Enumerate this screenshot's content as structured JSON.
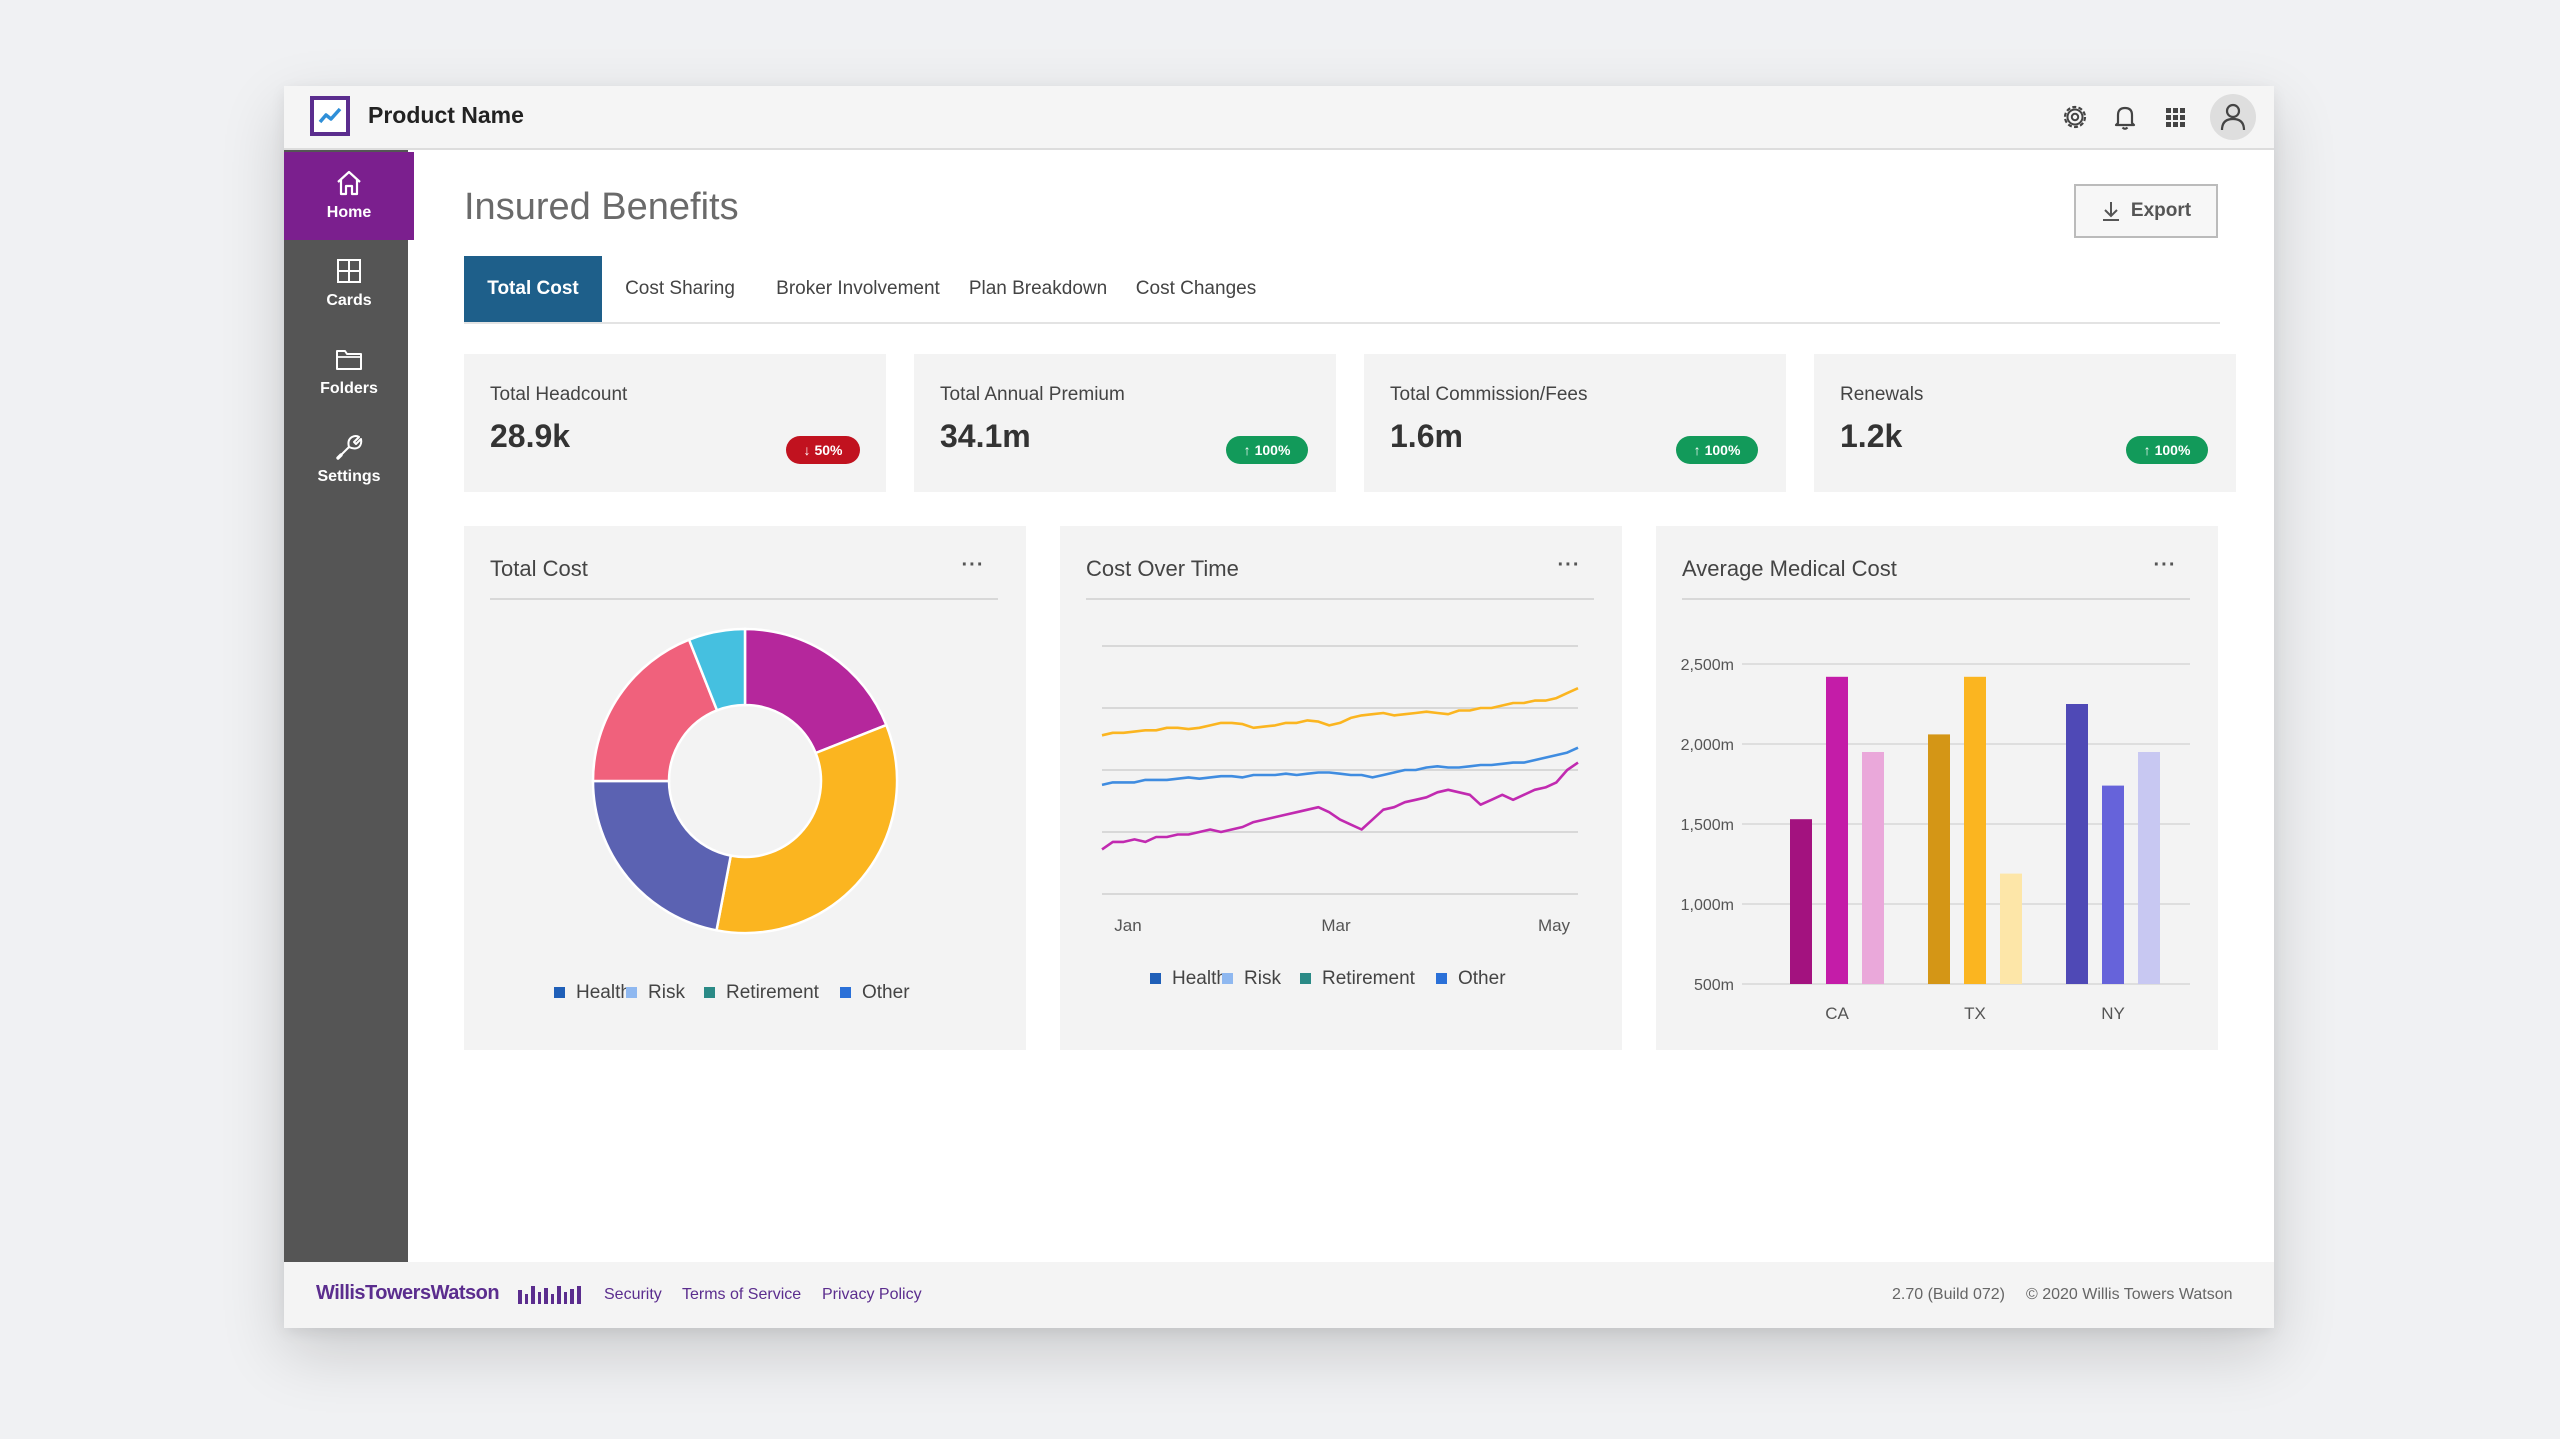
{
  "app": {
    "product_name": "Product Name"
  },
  "topbar": {
    "icons": [
      "gear-icon",
      "bell-icon",
      "grid-icon",
      "user-icon"
    ]
  },
  "sidebar": {
    "items": [
      {
        "label": "Home",
        "icon": "home-icon",
        "active": true
      },
      {
        "label": "Cards",
        "icon": "cards-icon",
        "active": false
      },
      {
        "label": "Folders",
        "icon": "folder-icon",
        "active": false
      },
      {
        "label": "Settings",
        "icon": "wrench-icon",
        "active": false
      }
    ]
  },
  "page": {
    "title": "Insured Benefits",
    "export_label": "Export"
  },
  "tabs": [
    {
      "label": "Total Cost",
      "active": true
    },
    {
      "label": "Cost Sharing",
      "active": false
    },
    {
      "label": "Broker Involvement",
      "active": false
    },
    {
      "label": "Plan Breakdown",
      "active": false
    },
    {
      "label": "Cost Changes",
      "active": false
    }
  ],
  "kpis": [
    {
      "label": "Total Headcount",
      "value": "28.9k",
      "change": "50%",
      "direction": "down"
    },
    {
      "label": "Total Annual Premium",
      "value": "34.1m",
      "change": "100%",
      "direction": "up"
    },
    {
      "label": "Total Commission/Fees",
      "value": "1.6m",
      "change": "100%",
      "direction": "up"
    },
    {
      "label": "Renewals",
      "value": "1.2k",
      "change": "100%",
      "direction": "up"
    }
  ],
  "colors": {
    "accent_purple": "#7b1f8e",
    "tab_active": "#1e5f8a",
    "badge_down": "#c1121f",
    "badge_up": "#129a5a"
  },
  "chart_data": [
    {
      "type": "pie",
      "title": "Total Cost",
      "more_label": "···",
      "donut": true,
      "slices": [
        {
          "value": 19,
          "color": "#b5279c"
        },
        {
          "value": 34,
          "color": "#fbb520"
        },
        {
          "value": 22,
          "color": "#5b62b2"
        },
        {
          "value": 19,
          "color": "#f0617c"
        },
        {
          "value": 6,
          "color": "#45c0e0"
        }
      ],
      "legend": [
        {
          "name": "Health",
          "color": "#1f5fb8"
        },
        {
          "name": "Risk",
          "color": "#8fb8f0"
        },
        {
          "name": "Retirement",
          "color": "#2a8a86"
        },
        {
          "name": "Other",
          "color": "#2a70d8"
        }
      ],
      "legend_position": "bottom"
    },
    {
      "type": "line",
      "title": "Cost Over Time",
      "more_label": "···",
      "x_tick_labels": [
        "Jan",
        "Mar",
        "May"
      ],
      "ylim": [
        0,
        100
      ],
      "grid": true,
      "series": [
        {
          "color": "#fbb520",
          "values": [
            64,
            65,
            65,
            65.5,
            66,
            66,
            67,
            67,
            66.5,
            67,
            68,
            69,
            69,
            68.5,
            67,
            67.5,
            68,
            69,
            69,
            70,
            69.5,
            68,
            69,
            71,
            72,
            72.5,
            73,
            72,
            72.5,
            73,
            73.5,
            73,
            72.5,
            74,
            74,
            75,
            75,
            76,
            77,
            77,
            78,
            78,
            79,
            81,
            83
          ]
        },
        {
          "color": "#3f8ce0",
          "values": [
            44,
            45,
            45,
            45,
            46,
            46,
            46,
            46.5,
            47,
            46.5,
            47,
            47.5,
            47.5,
            47,
            48,
            48,
            48,
            48.5,
            48,
            48.5,
            49,
            49,
            48.5,
            48,
            48,
            47,
            48,
            49,
            50,
            50,
            51,
            51.5,
            51,
            51,
            51.5,
            52,
            52,
            52.5,
            53,
            53,
            54,
            55,
            56,
            57,
            59
          ]
        },
        {
          "color": "#c12ab0",
          "values": [
            18,
            21,
            21,
            22,
            21,
            23,
            23,
            24,
            24,
            25,
            26,
            25,
            26,
            27,
            29,
            30,
            31,
            32,
            33,
            34,
            35,
            33,
            30,
            28,
            26,
            30,
            34,
            35,
            37,
            38,
            39,
            41,
            42,
            41,
            40,
            36,
            38,
            40,
            38,
            40,
            42,
            43,
            45,
            50,
            53
          ]
        }
      ],
      "legend": [
        {
          "name": "Health",
          "color": "#1f5fb8"
        },
        {
          "name": "Risk",
          "color": "#8fb8f0"
        },
        {
          "name": "Retirement",
          "color": "#2a8a86"
        },
        {
          "name": "Other",
          "color": "#2a70d8"
        }
      ],
      "legend_position": "bottom"
    },
    {
      "type": "bar",
      "title": "Average Medical Cost",
      "more_label": "···",
      "categories": [
        "CA",
        "TX",
        "NY"
      ],
      "ylim": [
        500,
        2500
      ],
      "y_ticks": [
        500,
        1000,
        1500,
        2000,
        2500
      ],
      "y_tick_labels": [
        "500m",
        "1,000m",
        "1,500m",
        "2,000m",
        "2,500m"
      ],
      "grid": true,
      "groups": [
        {
          "category": "CA",
          "bars": [
            {
              "value": 1530,
              "color": "#a3127f"
            },
            {
              "value": 2420,
              "color": "#c41ca8"
            },
            {
              "value": 1950,
              "color": "#eaa8da"
            }
          ]
        },
        {
          "category": "TX",
          "bars": [
            {
              "value": 2060,
              "color": "#d49616"
            },
            {
              "value": 2420,
              "color": "#fbb520"
            },
            {
              "value": 1190,
              "color": "#fde6a8"
            }
          ]
        },
        {
          "category": "NY",
          "bars": [
            {
              "value": 2250,
              "color": "#4f49b6"
            },
            {
              "value": 1740,
              "color": "#6663da"
            },
            {
              "value": 1950,
              "color": "#c8c8f2"
            }
          ]
        }
      ]
    }
  ],
  "footer": {
    "brand": "WillisTowersWatson",
    "links": [
      "Security",
      "Terms of Service",
      "Privacy Policy"
    ],
    "build": "2.70 (Build 072)",
    "copyright": "© 2020 Willis Towers Watson"
  }
}
